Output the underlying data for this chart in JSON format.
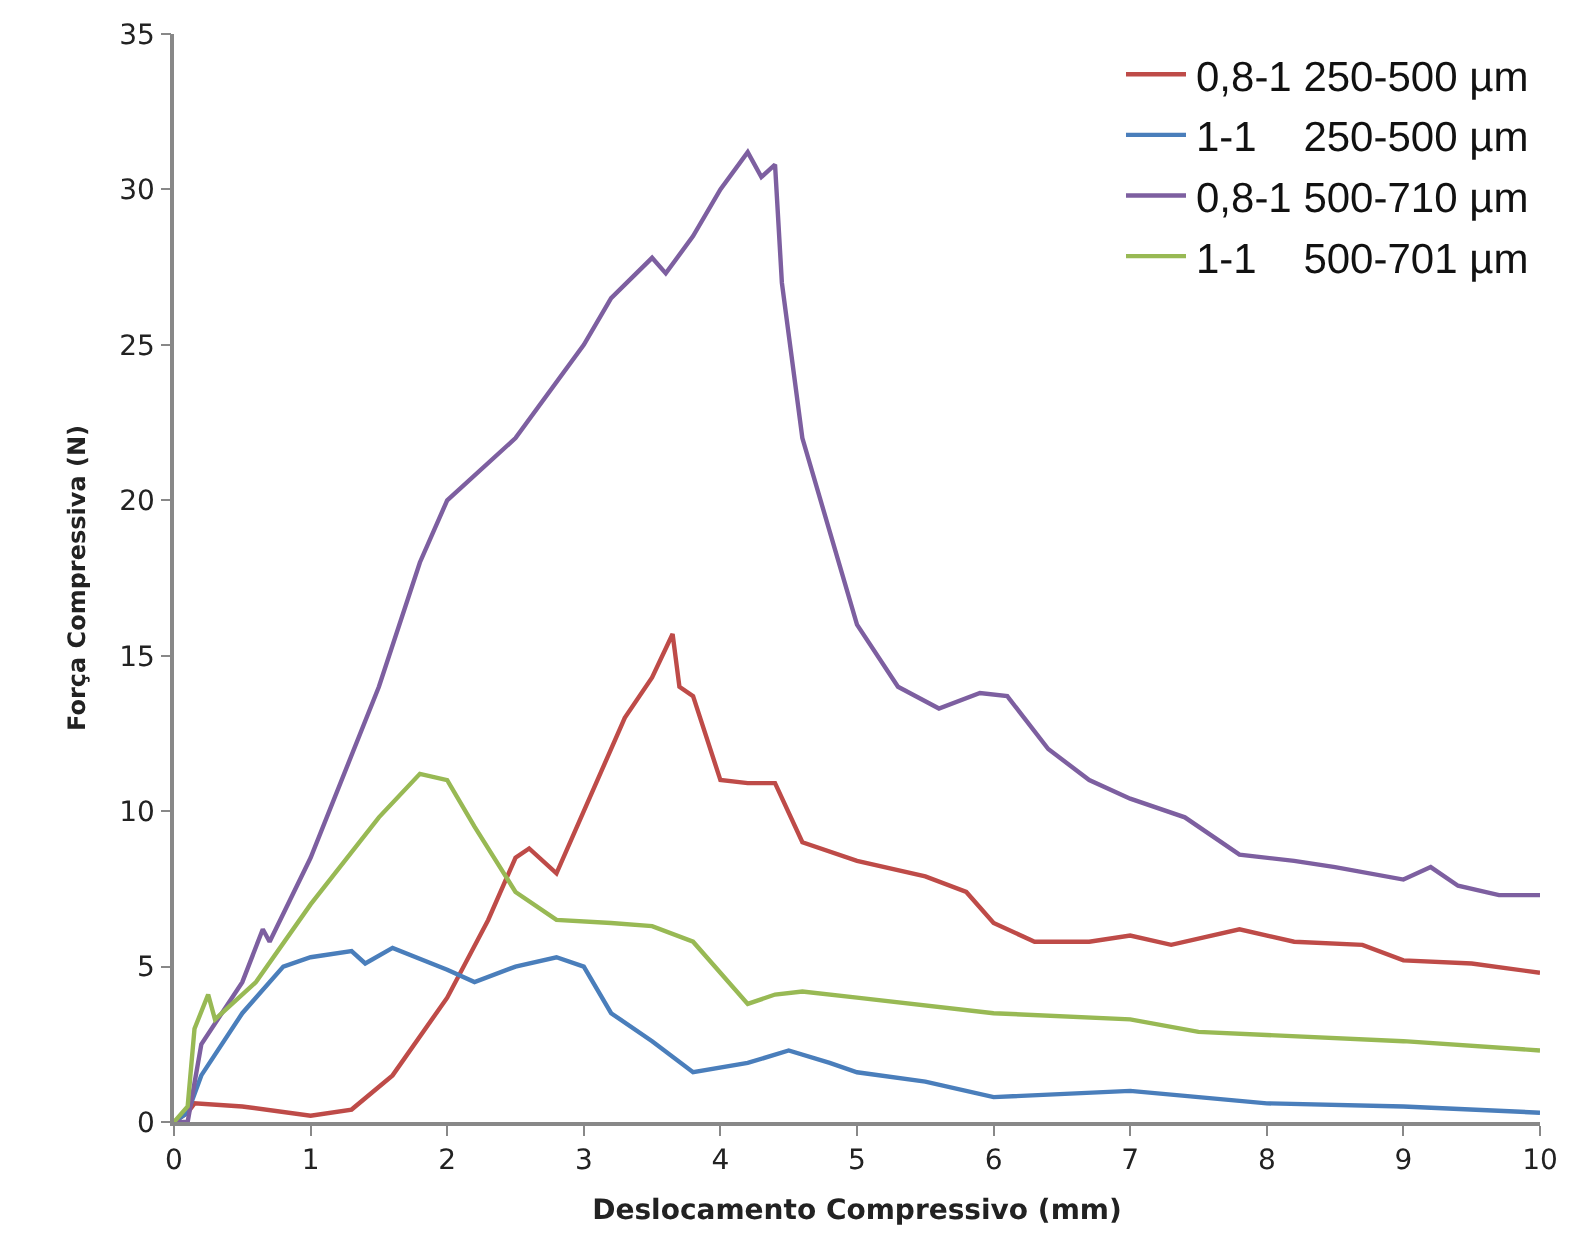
{
  "chart_data": {
    "type": "line",
    "xlabel": "Deslocamento Compressivo (mm)",
    "ylabel": "Força Compressiva (N)",
    "xlim": [
      0,
      10
    ],
    "xticks": [
      0,
      1,
      2,
      3,
      4,
      5,
      6,
      7,
      8,
      9,
      10
    ],
    "ylim": [
      0,
      35
    ],
    "yticks": [
      0,
      5,
      10,
      15,
      20,
      25,
      30,
      35
    ],
    "grid": false,
    "legend": "top right",
    "line_style": "solid",
    "marker": "none",
    "series": [
      {
        "name": "0,8-1 250-500 µm",
        "color": "#be4b48",
        "x": [
          0,
          0.1,
          0.15,
          0.5,
          1.0,
          1.3,
          1.6,
          2.0,
          2.3,
          2.5,
          2.6,
          2.8,
          3.0,
          3.3,
          3.5,
          3.65,
          3.7,
          3.8,
          4.0,
          4.2,
          4.4,
          4.6,
          5.0,
          5.5,
          5.8,
          6.0,
          6.3,
          6.7,
          7.0,
          7.3,
          7.8,
          8.2,
          8.7,
          9.0,
          9.5,
          10
        ],
        "values": [
          0,
          0.3,
          0.6,
          0.5,
          0.2,
          0.4,
          1.5,
          4,
          6.5,
          8.5,
          8.8,
          8,
          10,
          13,
          14.3,
          15.7,
          14,
          13.7,
          11,
          10.9,
          10.9,
          9,
          8.4,
          7.9,
          7.4,
          6.4,
          5.8,
          5.8,
          6.0,
          5.7,
          6.2,
          5.8,
          5.7,
          5.2,
          5.1,
          4.8
        ]
      },
      {
        "name": "1-1    250-500 µm",
        "color": "#4a7ebb",
        "x": [
          0,
          0.1,
          0.2,
          0.5,
          0.8,
          1.0,
          1.3,
          1.4,
          1.6,
          2.0,
          2.2,
          2.5,
          2.8,
          3.0,
          3.2,
          3.5,
          3.8,
          4.2,
          4.5,
          4.8,
          5.0,
          5.5,
          6.0,
          7.0,
          7.5,
          8.0,
          9.0,
          10
        ],
        "values": [
          0,
          0.3,
          1.5,
          3.5,
          5.0,
          5.3,
          5.5,
          5.1,
          5.6,
          4.9,
          4.5,
          5.0,
          5.3,
          5.0,
          3.5,
          2.6,
          1.6,
          1.9,
          2.3,
          1.9,
          1.6,
          1.3,
          0.8,
          1.0,
          0.8,
          0.6,
          0.5,
          0.3
        ]
      },
      {
        "name": "0,8-1 500-710 µm",
        "color": "#7d5fa0",
        "x": [
          0,
          0.1,
          0.2,
          0.5,
          0.65,
          0.7,
          1.0,
          1.5,
          1.8,
          2.0,
          2.5,
          3.0,
          3.2,
          3.5,
          3.6,
          3.8,
          4.0,
          4.2,
          4.3,
          4.4,
          4.45,
          4.6,
          4.8,
          5.0,
          5.3,
          5.6,
          5.9,
          6.1,
          6.4,
          6.7,
          7.0,
          7.4,
          7.8,
          8.2,
          8.5,
          9.0,
          9.2,
          9.4,
          9.7,
          10
        ],
        "values": [
          0,
          0,
          2.5,
          4.5,
          6.2,
          5.8,
          8.5,
          14,
          18,
          20,
          22,
          25,
          26.5,
          27.8,
          27.3,
          28.5,
          30,
          31.2,
          30.4,
          30.8,
          27,
          22,
          19,
          16,
          14,
          13.3,
          13.8,
          13.7,
          12,
          11,
          10.4,
          9.8,
          8.6,
          8.4,
          8.2,
          7.8,
          8.2,
          7.6,
          7.3,
          7.3
        ]
      },
      {
        "name": "1-1    500-701 µm",
        "color": "#98b954",
        "x": [
          0,
          0.1,
          0.15,
          0.25,
          0.3,
          0.6,
          1.0,
          1.5,
          1.8,
          2.0,
          2.2,
          2.5,
          2.8,
          3.2,
          3.5,
          3.8,
          4.2,
          4.4,
          4.6,
          5.0,
          6.0,
          7.0,
          7.5,
          8.0,
          9.0,
          10
        ],
        "values": [
          0,
          0.5,
          3,
          4.1,
          3.3,
          4.5,
          7,
          9.8,
          11.2,
          11,
          9.5,
          7.4,
          6.5,
          6.4,
          6.3,
          5.8,
          3.8,
          4.1,
          4.2,
          4.0,
          3.5,
          3.3,
          2.9,
          2.8,
          2.6,
          2.3
        ]
      }
    ]
  }
}
